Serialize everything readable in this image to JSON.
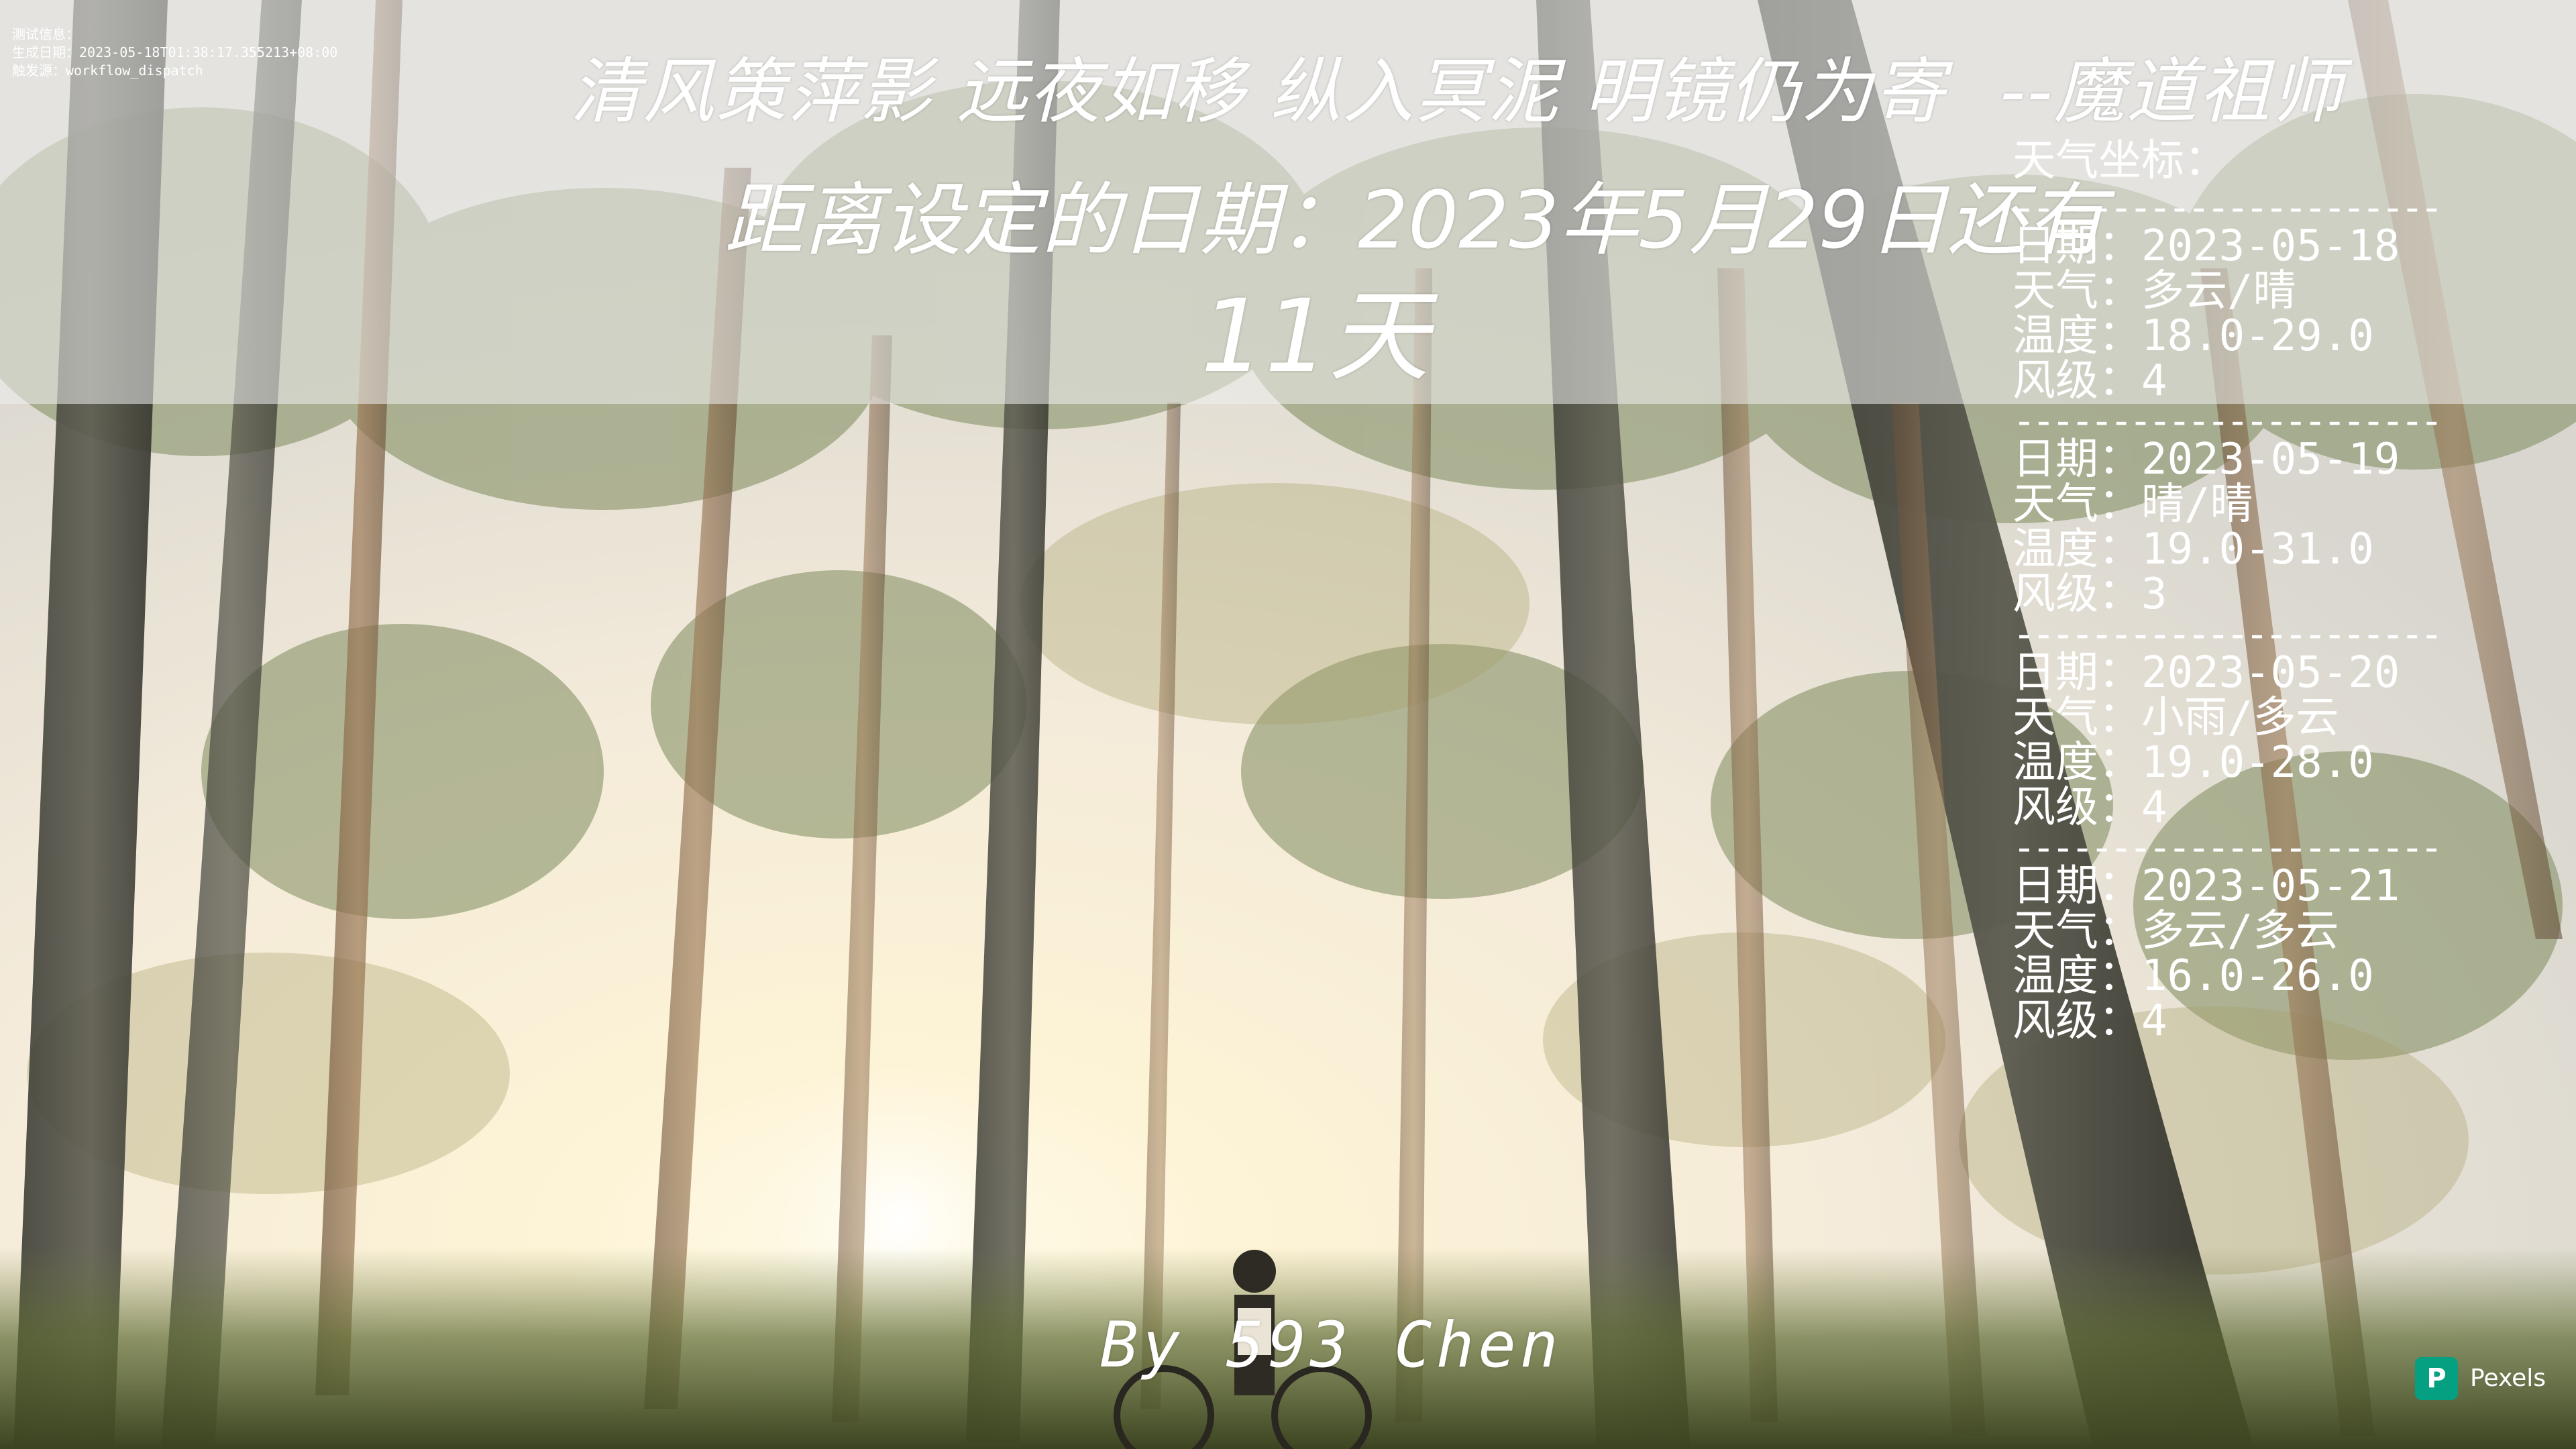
{
  "debug": {
    "line1": "测试信息：",
    "line2": "生成日期：2023-05-18T01:38:17.355213+08:00",
    "line3": "触发源：workflow_dispatch"
  },
  "quote": {
    "text": "清风策萍影 远夜如移 纵入冥泥 明镜仍为寄",
    "author": "--魔道祖师"
  },
  "countdown": {
    "text": "距离设定的日期：2023年5月29日还有",
    "days": "11天"
  },
  "weather": {
    "title": "天气坐标：",
    "separator": "------------------------",
    "days": [
      {
        "date": "日期：2023-05-18",
        "weather": "天气：多云/晴",
        "temp": "温度：18.0-29.0",
        "wind": "风级：4"
      },
      {
        "date": "日期：2023-05-19",
        "weather": "天气：晴/晴",
        "temp": "温度：19.0-31.0",
        "wind": "风级：3"
      },
      {
        "date": "日期：2023-05-20",
        "weather": "天气：小雨/多云",
        "temp": "温度：19.0-28.0",
        "wind": "风级：4"
      },
      {
        "date": "日期：2023-05-21",
        "weather": "天气：多云/多云",
        "temp": "温度：16.0-26.0",
        "wind": "风级：4"
      }
    ]
  },
  "byline": "By 593 Chen",
  "watermark": {
    "logo": "P",
    "text": "Pexels"
  }
}
